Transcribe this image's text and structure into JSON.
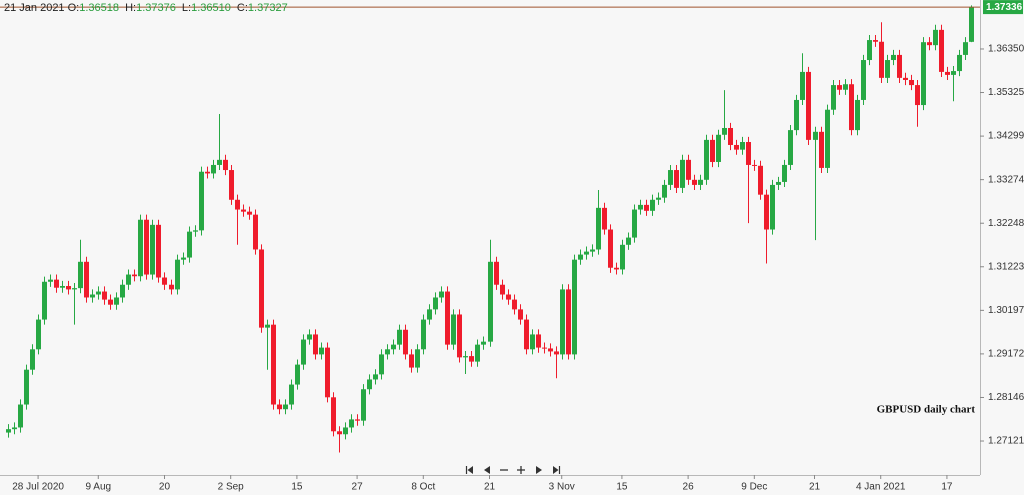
{
  "chart_data": {
    "type": "candlestick",
    "header": {
      "date": "21 Jan 2021",
      "items": [
        {
          "label": "O:",
          "value": "1.36518"
        },
        {
          "label": "H:",
          "value": "1.37376"
        },
        {
          "label": "L:",
          "value": "1.36510"
        },
        {
          "label": "C:",
          "value": "1.37327"
        }
      ]
    },
    "annotation": "GBPUSD daily chart",
    "up_color": "#27a844",
    "down_color": "#ef1c2c",
    "last_price": 1.37336,
    "last_price_color": "#a0522d",
    "grid": false,
    "ylim": [
      1.26321,
      1.37503
    ],
    "yticks": [
      1.27121,
      1.28146,
      1.29172,
      1.30197,
      1.31223,
      1.32248,
      1.33274,
      1.34299,
      1.35325,
      {
        "value": 1.3635,
        "label": "1.36350"
      }
    ],
    "categories": [
      null,
      null,
      null,
      null,
      null,
      "28 Jul 2020",
      null,
      null,
      null,
      null,
      null,
      null,
      null,
      null,
      null,
      "9 Aug",
      null,
      null,
      null,
      null,
      null,
      null,
      null,
      null,
      null,
      null,
      "20",
      null,
      null,
      null,
      null,
      null,
      null,
      null,
      null,
      null,
      null,
      "2 Sep",
      null,
      null,
      null,
      null,
      null,
      null,
      null,
      null,
      null,
      null,
      "15",
      null,
      null,
      null,
      null,
      null,
      null,
      null,
      null,
      null,
      "27",
      null,
      null,
      null,
      null,
      null,
      null,
      null,
      null,
      null,
      null,
      "8 Oct",
      null,
      null,
      null,
      null,
      null,
      null,
      null,
      null,
      null,
      null,
      "21",
      null,
      null,
      null,
      null,
      null,
      null,
      null,
      null,
      null,
      null,
      null,
      "3 Nov",
      null,
      null,
      null,
      null,
      null,
      null,
      null,
      null,
      null,
      "15",
      null,
      null,
      null,
      null,
      null,
      null,
      null,
      null,
      null,
      null,
      "26",
      null,
      null,
      null,
      null,
      null,
      null,
      null,
      null,
      null,
      null,
      "9 Dec",
      null,
      null,
      null,
      null,
      null,
      null,
      null,
      null,
      null,
      "21",
      null,
      null,
      null,
      null,
      null,
      null,
      null,
      null,
      null,
      null,
      "4 Jan 2021",
      null,
      null,
      null,
      null,
      null,
      null,
      null,
      null,
      null,
      null,
      "17",
      null,
      null,
      null,
      null
    ],
    "open": [
      1.2732,
      1.274,
      1.2744,
      1.2798,
      1.288,
      1.2928,
      1.2998,
      1.3087,
      1.3092,
      1.3073,
      1.3077,
      1.3069,
      1.3072,
      1.3134,
      1.305,
      1.3057,
      1.3064,
      1.3045,
      1.3033,
      1.305,
      1.308,
      1.3104,
      1.31,
      1.3233,
      1.3104,
      1.3221,
      1.3097,
      1.308,
      1.3069,
      1.3139,
      1.3144,
      1.3205,
      1.3208,
      1.3346,
      1.3342,
      1.3362,
      1.3374,
      1.335,
      1.328,
      1.3257,
      1.3252,
      1.3245,
      1.3163,
      1.2979,
      1.2986,
      1.2798,
      1.2787,
      1.2798,
      1.2845,
      1.2892,
      1.2951,
      1.2963,
      1.2916,
      1.2932,
      1.2815,
      1.2735,
      1.2728,
      1.2744,
      1.2763,
      1.276,
      1.2834,
      1.2857,
      1.2869,
      1.2916,
      1.2928,
      1.2939,
      1.2974,
      1.2916,
      1.2885,
      1.2928,
      1.2998,
      1.3022,
      1.305,
      1.3064,
      1.2939,
      1.301,
      1.2909,
      1.2912,
      1.2899,
      1.2939,
      1.2946,
      1.3134,
      1.308,
      1.3057,
      1.3045,
      1.3022,
      1.2998,
      1.2928,
      1.2963,
      1.2932,
      1.293,
      1.2923,
      1.2916,
      1.3069,
      1.2916,
      1.3139,
      1.3151,
      1.3158,
      1.3163,
      1.3261,
      1.321,
      1.312,
      1.3116,
      1.3174,
      1.3191,
      1.3257,
      1.3268,
      1.3254,
      1.328,
      1.3285,
      1.3315,
      1.335,
      1.3308,
      1.3374,
      1.3327,
      1.3315,
      1.3327,
      1.3421,
      1.3369,
      1.3433,
      1.3449,
      1.3409,
      1.3398,
      1.3416,
      1.3362,
      1.336,
      1.3292,
      1.321,
      1.3315,
      1.3322,
      1.3362,
      1.3444,
      1.3515,
      1.3581,
      1.3421,
      1.344,
      1.3355,
      1.3492,
      1.355,
      1.3539,
      1.3552,
      1.3444,
      1.3515,
      1.3609,
      1.3656,
      1.3652,
      1.3567,
      1.3609,
      1.3621,
      1.3567,
      1.3562,
      1.355,
      1.3503,
      1.3651,
      1.3644,
      1.368,
      1.3581,
      1.3574,
      1.3583,
      1.3621,
      1.36518
    ],
    "high": [
      1.2752,
      1.2756,
      1.281,
      1.2892,
      1.294,
      1.301,
      1.3099,
      1.3104,
      1.3104,
      1.3089,
      1.3089,
      1.3084,
      1.3186,
      1.3146,
      1.3069,
      1.3076,
      1.3076,
      1.3057,
      1.3062,
      1.3092,
      1.3116,
      1.3116,
      1.3245,
      1.3245,
      1.3233,
      1.3233,
      1.3109,
      1.3092,
      1.3151,
      1.3156,
      1.3217,
      1.322,
      1.3358,
      1.3358,
      1.3374,
      1.3482,
      1.3386,
      1.3362,
      1.3292,
      1.3269,
      1.3264,
      1.3257,
      1.3175,
      1.2998,
      1.2998,
      1.281,
      1.281,
      1.2857,
      1.2904,
      1.2963,
      1.2975,
      1.2975,
      1.2944,
      1.2944,
      1.2827,
      1.2747,
      1.2756,
      1.2775,
      1.2775,
      1.2846,
      1.2869,
      1.2881,
      1.2928,
      1.294,
      1.2951,
      1.2986,
      1.2986,
      1.2928,
      1.294,
      1.301,
      1.3034,
      1.3062,
      1.3076,
      1.3076,
      1.3022,
      1.3022,
      1.2924,
      1.2924,
      1.2951,
      1.2958,
      1.3186,
      1.3146,
      1.3092,
      1.3069,
      1.3057,
      1.3034,
      1.301,
      1.2975,
      1.2975,
      1.2944,
      1.2942,
      1.2935,
      1.3081,
      1.3081,
      1.3151,
      1.3163,
      1.317,
      1.3175,
      1.3303,
      1.3273,
      1.3222,
      1.3132,
      1.3186,
      1.3203,
      1.3269,
      1.328,
      1.328,
      1.3292,
      1.3297,
      1.3327,
      1.3362,
      1.3362,
      1.3386,
      1.3386,
      1.3339,
      1.3339,
      1.3433,
      1.3433,
      1.3445,
      1.3538,
      1.3461,
      1.3421,
      1.3428,
      1.3428,
      1.3374,
      1.3372,
      1.3304,
      1.3327,
      1.3334,
      1.3374,
      1.3456,
      1.3527,
      1.3625,
      1.3593,
      1.3452,
      1.3452,
      1.3504,
      1.3562,
      1.3562,
      1.3564,
      1.3564,
      1.3527,
      1.3621,
      1.3668,
      1.3668,
      1.3698,
      1.3621,
      1.3633,
      1.3633,
      1.3579,
      1.3574,
      1.3562,
      1.3663,
      1.3663,
      1.3692,
      1.3692,
      1.3593,
      1.3595,
      1.3633,
      1.3663,
      1.37376
    ],
    "low": [
      1.272,
      1.2728,
      1.2732,
      1.2786,
      1.2868,
      1.2916,
      1.2986,
      1.3075,
      1.3061,
      1.3061,
      1.3057,
      1.2986,
      1.306,
      1.3038,
      1.3038,
      1.3045,
      1.3033,
      1.3021,
      1.3021,
      1.3038,
      1.3068,
      1.3088,
      1.3088,
      1.3092,
      1.3092,
      1.3085,
      1.3068,
      1.3057,
      1.3057,
      1.3127,
      1.3132,
      1.3193,
      1.3196,
      1.333,
      1.333,
      1.335,
      1.3338,
      1.3268,
      1.3174,
      1.324,
      1.3233,
      1.3151,
      1.2967,
      1.288,
      1.2786,
      1.2775,
      1.2775,
      1.2786,
      1.2833,
      1.288,
      1.2939,
      1.2904,
      1.2904,
      1.2803,
      1.2723,
      1.2685,
      1.2716,
      1.2732,
      1.2748,
      1.2748,
      1.2822,
      1.2845,
      1.2857,
      1.2904,
      1.2916,
      1.2927,
      1.2904,
      1.2873,
      1.2873,
      1.2916,
      1.2986,
      1.301,
      1.3038,
      1.2927,
      1.2927,
      1.2897,
      1.287,
      1.2887,
      1.2887,
      1.2927,
      1.2934,
      1.3068,
      1.3045,
      1.3033,
      1.301,
      1.2986,
      1.2916,
      1.2916,
      1.292,
      1.2918,
      1.2911,
      1.286,
      1.2904,
      1.2904,
      1.2904,
      1.3127,
      1.3139,
      1.3146,
      1.3151,
      1.3198,
      1.3108,
      1.3104,
      1.3104,
      1.3162,
      1.3179,
      1.3245,
      1.3242,
      1.3242,
      1.3268,
      1.3273,
      1.3303,
      1.3296,
      1.3296,
      1.3315,
      1.3303,
      1.3303,
      1.3315,
      1.3357,
      1.3357,
      1.3421,
      1.3397,
      1.3386,
      1.3386,
      1.3225,
      1.3348,
      1.328,
      1.313,
      1.3198,
      1.3303,
      1.331,
      1.335,
      1.3432,
      1.3503,
      1.3409,
      1.3185,
      1.3343,
      1.3343,
      1.348,
      1.3527,
      1.3527,
      1.3432,
      1.3432,
      1.3503,
      1.3597,
      1.364,
      1.3555,
      1.3555,
      1.3597,
      1.3555,
      1.355,
      1.3538,
      1.3452,
      1.3491,
      1.3632,
      1.3632,
      1.3569,
      1.3562,
      1.3512,
      1.3571,
      1.3609,
      1.3651
    ],
    "close": [
      1.274,
      1.2744,
      1.2798,
      1.288,
      1.2928,
      1.2998,
      1.3087,
      1.3092,
      1.3073,
      1.3077,
      1.3069,
      1.3072,
      1.3134,
      1.305,
      1.3057,
      1.3064,
      1.3045,
      1.3033,
      1.305,
      1.308,
      1.3104,
      1.31,
      1.3233,
      1.3104,
      1.3221,
      1.3097,
      1.308,
      1.3069,
      1.3139,
      1.3144,
      1.3205,
      1.3208,
      1.3346,
      1.3342,
      1.3362,
      1.3374,
      1.335,
      1.328,
      1.3257,
      1.3252,
      1.3245,
      1.3163,
      1.2979,
      1.2986,
      1.2798,
      1.2787,
      1.2798,
      1.2845,
      1.2892,
      1.2951,
      1.2963,
      1.2916,
      1.2932,
      1.2815,
      1.2735,
      1.2728,
      1.2744,
      1.2763,
      1.276,
      1.2834,
      1.2857,
      1.2869,
      1.2916,
      1.2928,
      1.2939,
      1.2974,
      1.2916,
      1.2885,
      1.2928,
      1.2998,
      1.3022,
      1.305,
      1.3064,
      1.2939,
      1.301,
      1.2909,
      1.2912,
      1.2899,
      1.2939,
      1.2946,
      1.3134,
      1.308,
      1.3057,
      1.3045,
      1.3022,
      1.2998,
      1.2928,
      1.2963,
      1.2932,
      1.293,
      1.2923,
      1.2916,
      1.3069,
      1.2916,
      1.3139,
      1.3151,
      1.3158,
      1.3163,
      1.3261,
      1.321,
      1.312,
      1.3116,
      1.3174,
      1.3191,
      1.3257,
      1.3268,
      1.3254,
      1.328,
      1.3285,
      1.3315,
      1.335,
      1.3308,
      1.3374,
      1.3327,
      1.3315,
      1.3327,
      1.3421,
      1.3369,
      1.3433,
      1.3449,
      1.3409,
      1.3398,
      1.3416,
      1.3362,
      1.336,
      1.3292,
      1.321,
      1.3315,
      1.3322,
      1.3362,
      1.3444,
      1.3515,
      1.3581,
      1.3421,
      1.344,
      1.3355,
      1.3492,
      1.355,
      1.3539,
      1.3552,
      1.3444,
      1.3515,
      1.3609,
      1.3656,
      1.3652,
      1.3567,
      1.3609,
      1.3621,
      1.3567,
      1.3562,
      1.355,
      1.3503,
      1.3651,
      1.3644,
      1.368,
      1.3581,
      1.3574,
      1.3583,
      1.3621,
      1.3651,
      1.37327
    ]
  }
}
